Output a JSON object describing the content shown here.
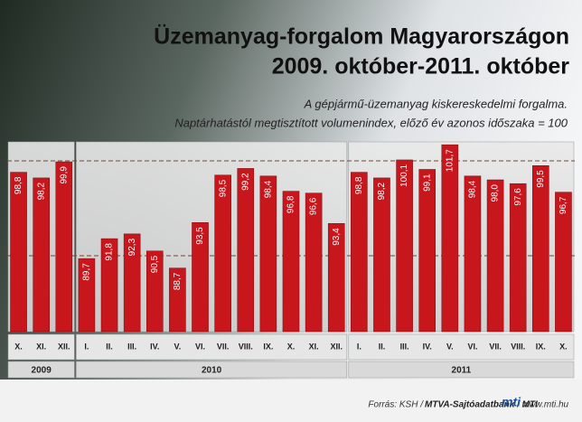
{
  "chart_data": {
    "type": "bar",
    "title": "Üzemanyag-forgalom Magyarországon",
    "title_line2": "2009. október-2011. október",
    "subtitle": "A gépjármű-üzemanyag kiskereskedelmi forgalma.",
    "subtitle_line2": "Naptárhatástól megtisztított volumenindex, előző év azonos időszaka = 100",
    "source": "Forrás: KSH /",
    "source_agency": "MTVA-Sajtóadatbank / MTI",
    "logo": "mti",
    "website": "www.mti.hu",
    "color": "#c8161d",
    "ylim": [
      82,
      102
    ],
    "ref_lines": [
      90,
      100
    ],
    "groups": [
      {
        "name": "2009",
        "categories": [
          "X.",
          "XI.",
          "XII."
        ],
        "values": [
          98.8,
          98.2,
          99.9
        ],
        "value_labels": [
          "98,8",
          "98,2",
          "99,9"
        ]
      },
      {
        "name": "2010",
        "categories": [
          "I.",
          "II.",
          "III.",
          "IV.",
          "V.",
          "VI.",
          "VII.",
          "VIII.",
          "IX.",
          "X.",
          "XI.",
          "XII."
        ],
        "values": [
          89.7,
          91.8,
          92.3,
          90.5,
          88.7,
          93.5,
          98.5,
          99.2,
          98.4,
          96.8,
          96.6,
          93.4
        ],
        "value_labels": [
          "89,7",
          "91,8",
          "92,3",
          "90,5",
          "88,7",
          "93,5",
          "98,5",
          "99,2",
          "98,4",
          "96,8",
          "96,6",
          "93,4"
        ]
      },
      {
        "name": "2011",
        "categories": [
          "I.",
          "II.",
          "III.",
          "IV.",
          "V.",
          "VI.",
          "VII.",
          "VIII.",
          "IX.",
          "X."
        ],
        "values": [
          98.8,
          98.2,
          100.1,
          99.1,
          101.7,
          98.4,
          98.0,
          97.6,
          99.5,
          96.7
        ],
        "value_labels": [
          "98,8",
          "98,2",
          "100,1",
          "99,1",
          "101,7",
          "98,4",
          "98,0",
          "97,6",
          "99,5",
          "96,7"
        ]
      }
    ]
  }
}
